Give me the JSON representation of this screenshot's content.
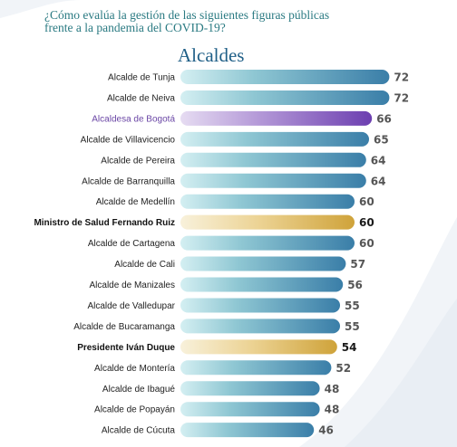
{
  "header": {
    "question": "¿Cómo evalúa la gestión de las siguientes figuras públicas frente a la pandemia del COVID-19?",
    "section_title": "Alcaldes"
  },
  "colors": {
    "default_bar": "#4a94b4",
    "highlight_bar": "#7b52b5",
    "national_bar": "#d8b148",
    "question_text": "#2a7a82",
    "title_text": "#1f5f87"
  },
  "chart_data": {
    "type": "bar",
    "orientation": "horizontal",
    "title": "Alcaldes",
    "categories": [
      "Alcalde de Tunja",
      "Alcalde de Neiva",
      "Alcaldesa de Bogotá",
      "Alcalde de Villavicencio",
      "Alcalde de Pereira",
      "Alcalde de Barranquilla",
      "Alcalde de Medellín",
      "Ministro de Salud Fernando Ruiz",
      "Alcalde de Cartagena",
      "Alcalde de Cali",
      "Alcalde de Manizales",
      "Alcalde de Valledupar",
      "Alcalde de Bucaramanga",
      "Presidente Iván Duque",
      "Alcalde de Montería",
      "Alcalde de Ibagué",
      "Alcalde de Popayán",
      "Alcalde de Cúcuta"
    ],
    "values": [
      72,
      72,
      66,
      65,
      64,
      64,
      60,
      60,
      60,
      57,
      56,
      55,
      55,
      54,
      52,
      48,
      48,
      46
    ],
    "styles": [
      "default",
      "default",
      "purple",
      "default",
      "default",
      "default",
      "default",
      "gold",
      "default",
      "default",
      "default",
      "default",
      "default",
      "gold",
      "default",
      "default",
      "default",
      "default"
    ],
    "value_labels": [
      "72",
      "72",
      "66",
      "65",
      "64",
      "64",
      "60",
      "60",
      "60",
      "57",
      "56",
      "55",
      "55",
      "54",
      "52",
      "48",
      "48",
      "46"
    ],
    "xlim": [
      0,
      72
    ],
    "grid": false,
    "legend": "none"
  }
}
